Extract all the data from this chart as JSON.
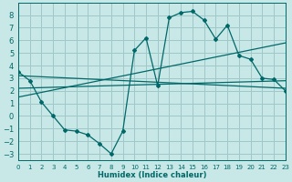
{
  "xlabel": "Humidex (Indice chaleur)",
  "background_color": "#c8e8e8",
  "grid_color": "#a0c8c8",
  "line_color": "#006868",
  "xlim": [
    0,
    23
  ],
  "ylim": [
    -3.5,
    9
  ],
  "yticks": [
    -3,
    -2,
    -1,
    0,
    1,
    2,
    3,
    4,
    5,
    6,
    7,
    8
  ],
  "xticks": [
    0,
    1,
    2,
    3,
    4,
    5,
    6,
    7,
    8,
    9,
    10,
    11,
    12,
    13,
    14,
    15,
    16,
    17,
    18,
    19,
    20,
    21,
    22,
    23
  ],
  "series1_x": [
    0,
    1,
    2,
    3,
    4,
    5,
    6,
    7,
    8,
    9,
    10,
    11,
    12,
    13,
    14,
    15,
    16,
    17,
    18,
    19,
    20,
    21,
    22,
    23
  ],
  "series1_y": [
    3.5,
    2.8,
    1.1,
    0.0,
    -1.1,
    -1.2,
    -1.5,
    -2.2,
    -3.0,
    -1.2,
    5.2,
    6.2,
    2.4,
    7.8,
    8.2,
    8.3,
    7.6,
    6.1,
    7.2,
    4.8,
    4.5,
    3.0,
    2.9,
    2.0
  ],
  "line1_x": [
    0,
    23
  ],
  "line1_y": [
    3.2,
    2.2
  ],
  "line2_x": [
    0,
    23
  ],
  "line2_y": [
    2.2,
    2.8
  ],
  "line3_x": [
    0,
    23
  ],
  "line3_y": [
    1.5,
    5.8
  ]
}
